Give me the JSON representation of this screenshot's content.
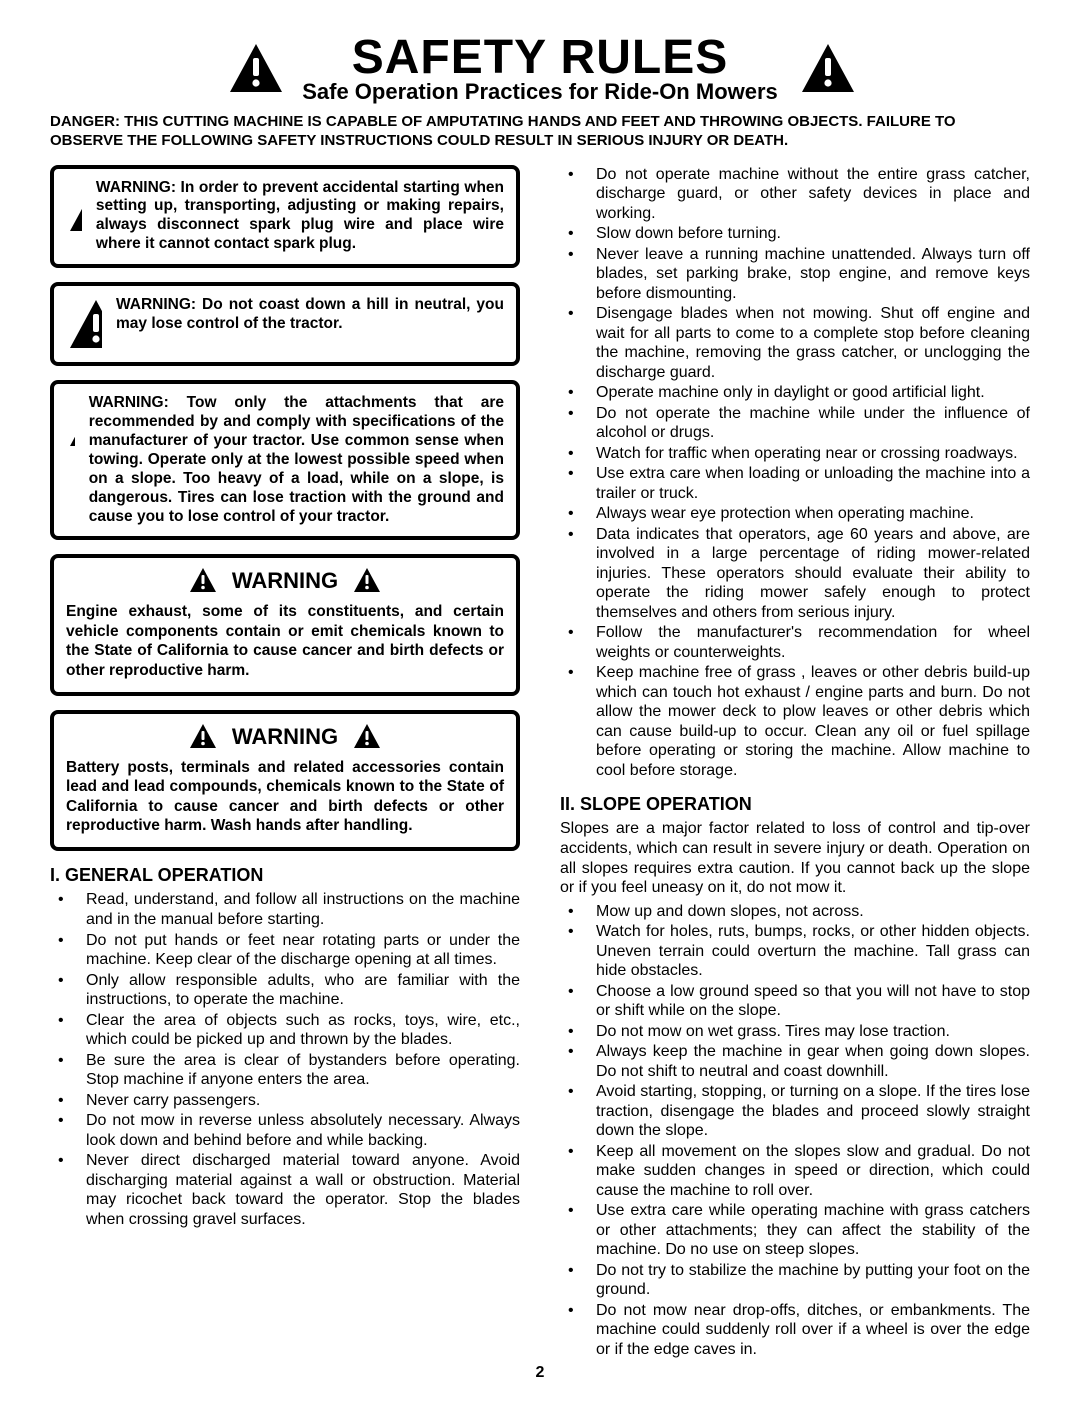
{
  "header": {
    "title": "SAFETY RULES",
    "subtitle": "Safe Operation Practices for Ride-On Mowers",
    "danger": "DANGER: THIS CUTTING MACHINE IS CAPABLE OF AMPUTATING HANDS AND FEET AND THROWING OBJECTS. FAILURE TO OBSERVE THE FOLLOWING SAFETY INSTRUCTIONS COULD RESULT IN SERIOUS INJURY OR DEATH."
  },
  "left": {
    "warn1": "WARNING: In order to prevent accidental starting when setting up, transporting, adjusting or making repairs, always disconnect spark plug wire and place wire where it cannot contact spark plug.",
    "warn2": "WARNING: Do not coast down a hill in neutral, you may lose control of the tractor.",
    "warn3": "WARNING: Tow only the attachments that are recommended by and comply with specifications of the manufacturer of your tractor. Use common sense when towing. Operate only at the lowest possible speed when on a slope. Too heavy of a load, while on a slope, is dangerous. Tires can lose traction with the ground and cause you to lose control of your tractor.",
    "warnTitleA": "WARNING",
    "warnBodyA": "Engine exhaust, some of its constituents, and certain vehicle components contain or emit chemicals known to the State of California to cause cancer and birth defects or other reproductive harm.",
    "warnTitleB": "WARNING",
    "warnBodyB": "Battery posts, terminals and related accessories contain lead and lead compounds, chemicals known to the State of California to cause cancer and birth defects or other reproductive harm. Wash hands after handling.",
    "sectionI": "I. GENERAL OPERATION",
    "general": [
      "Read, understand, and follow all instructions on the machine and in the manual before starting.",
      "Do not put hands or feet near rotating parts or under the machine. Keep clear of the discharge opening at all times.",
      "Only allow responsible adults, who are familiar with the instructions, to operate the machine.",
      "Clear the area of objects such as rocks, toys, wire, etc., which could be picked up and thrown by the blades.",
      "Be sure the area is clear of bystanders before operating. Stop machine if anyone enters the area.",
      "Never carry passengers.",
      "Do not mow in reverse unless absolutely necessary. Always look down and behind before and while backing.",
      "Never direct discharged material toward anyone. Avoid discharging material against a wall or obstruction. Material may ricochet back toward the operator. Stop the blades when crossing gravel surfaces."
    ]
  },
  "right": {
    "continued": [
      "Do not operate machine without the entire grass catcher, discharge guard, or other safety devices in place and working.",
      "Slow down before turning.",
      "Never leave a running machine unattended. Always turn off blades, set parking brake, stop engine, and remove keys before dismounting.",
      "Disengage blades when not mowing. Shut off engine and wait for all parts to come to a complete stop before cleaning the machine, removing the grass catcher, or unclogging the discharge guard.",
      "Operate machine only in daylight or good artificial light.",
      "Do not operate the machine while under the influence of alcohol or drugs.",
      "Watch for traffic when operating near or crossing roadways.",
      "Use extra care when loading or unloading the machine into a trailer or truck.",
      "Always wear eye protection when operating machine.",
      "Data indicates that operators, age 60 years and above, are involved in a large percentage of riding mower-related injuries. These operators should evaluate their ability to operate the riding mower safely enough to protect themselves and others from serious injury.",
      "Follow the manufacturer's recommendation for wheel weights or counterweights.",
      "Keep machine free of grass , leaves or other debris build-up which can touch hot exhaust / engine parts and burn. Do not allow the mower deck to plow leaves or other debris which can cause build-up to occur. Clean any oil or fuel spillage before operating or storing the machine. Allow machine to cool before storage."
    ],
    "sectionII": "II. SLOPE OPERATION",
    "slopeIntro": "Slopes are a major factor related to loss of control and tip-over accidents, which can result in severe injury or death. Operation on all slopes requires extra caution. If you cannot back up the slope or if you feel uneasy on it, do not mow it.",
    "slope": [
      "Mow up and down slopes, not across.",
      "Watch for holes, ruts, bumps, rocks, or other hidden objects. Uneven terrain could overturn the machine. Tall grass can hide obstacles.",
      "Choose a low ground speed so that you will not have to stop or shift while on the slope.",
      "Do not mow on wet grass. Tires may lose traction.",
      "Always keep the machine in gear when going down slopes. Do not shift to neutral and coast downhill.",
      "Avoid starting, stopping, or turning on a slope. If the tires lose traction, disengage the blades and proceed slowly straight down the slope.",
      "Keep all movement on the slopes slow and gradual. Do not make sudden changes in speed or direction, which could cause the machine to roll over.",
      "Use extra care while operating machine with grass catchers or other attachments; they can affect the stability of the machine. Do no use on steep slopes.",
      "Do not try to stabilize the machine by putting your foot on the ground.",
      "Do not mow near drop-offs, ditches, or embankments. The machine could suddenly roll over if a wheel is over the edge or if the edge caves in."
    ]
  },
  "pageNumber": "2",
  "style": {
    "triangleColor": "#000000",
    "bgColor": "#ffffff",
    "textColor": "#000000",
    "headerIconSize": 56,
    "boxIconSize": 56,
    "smallIconSize": 30
  }
}
